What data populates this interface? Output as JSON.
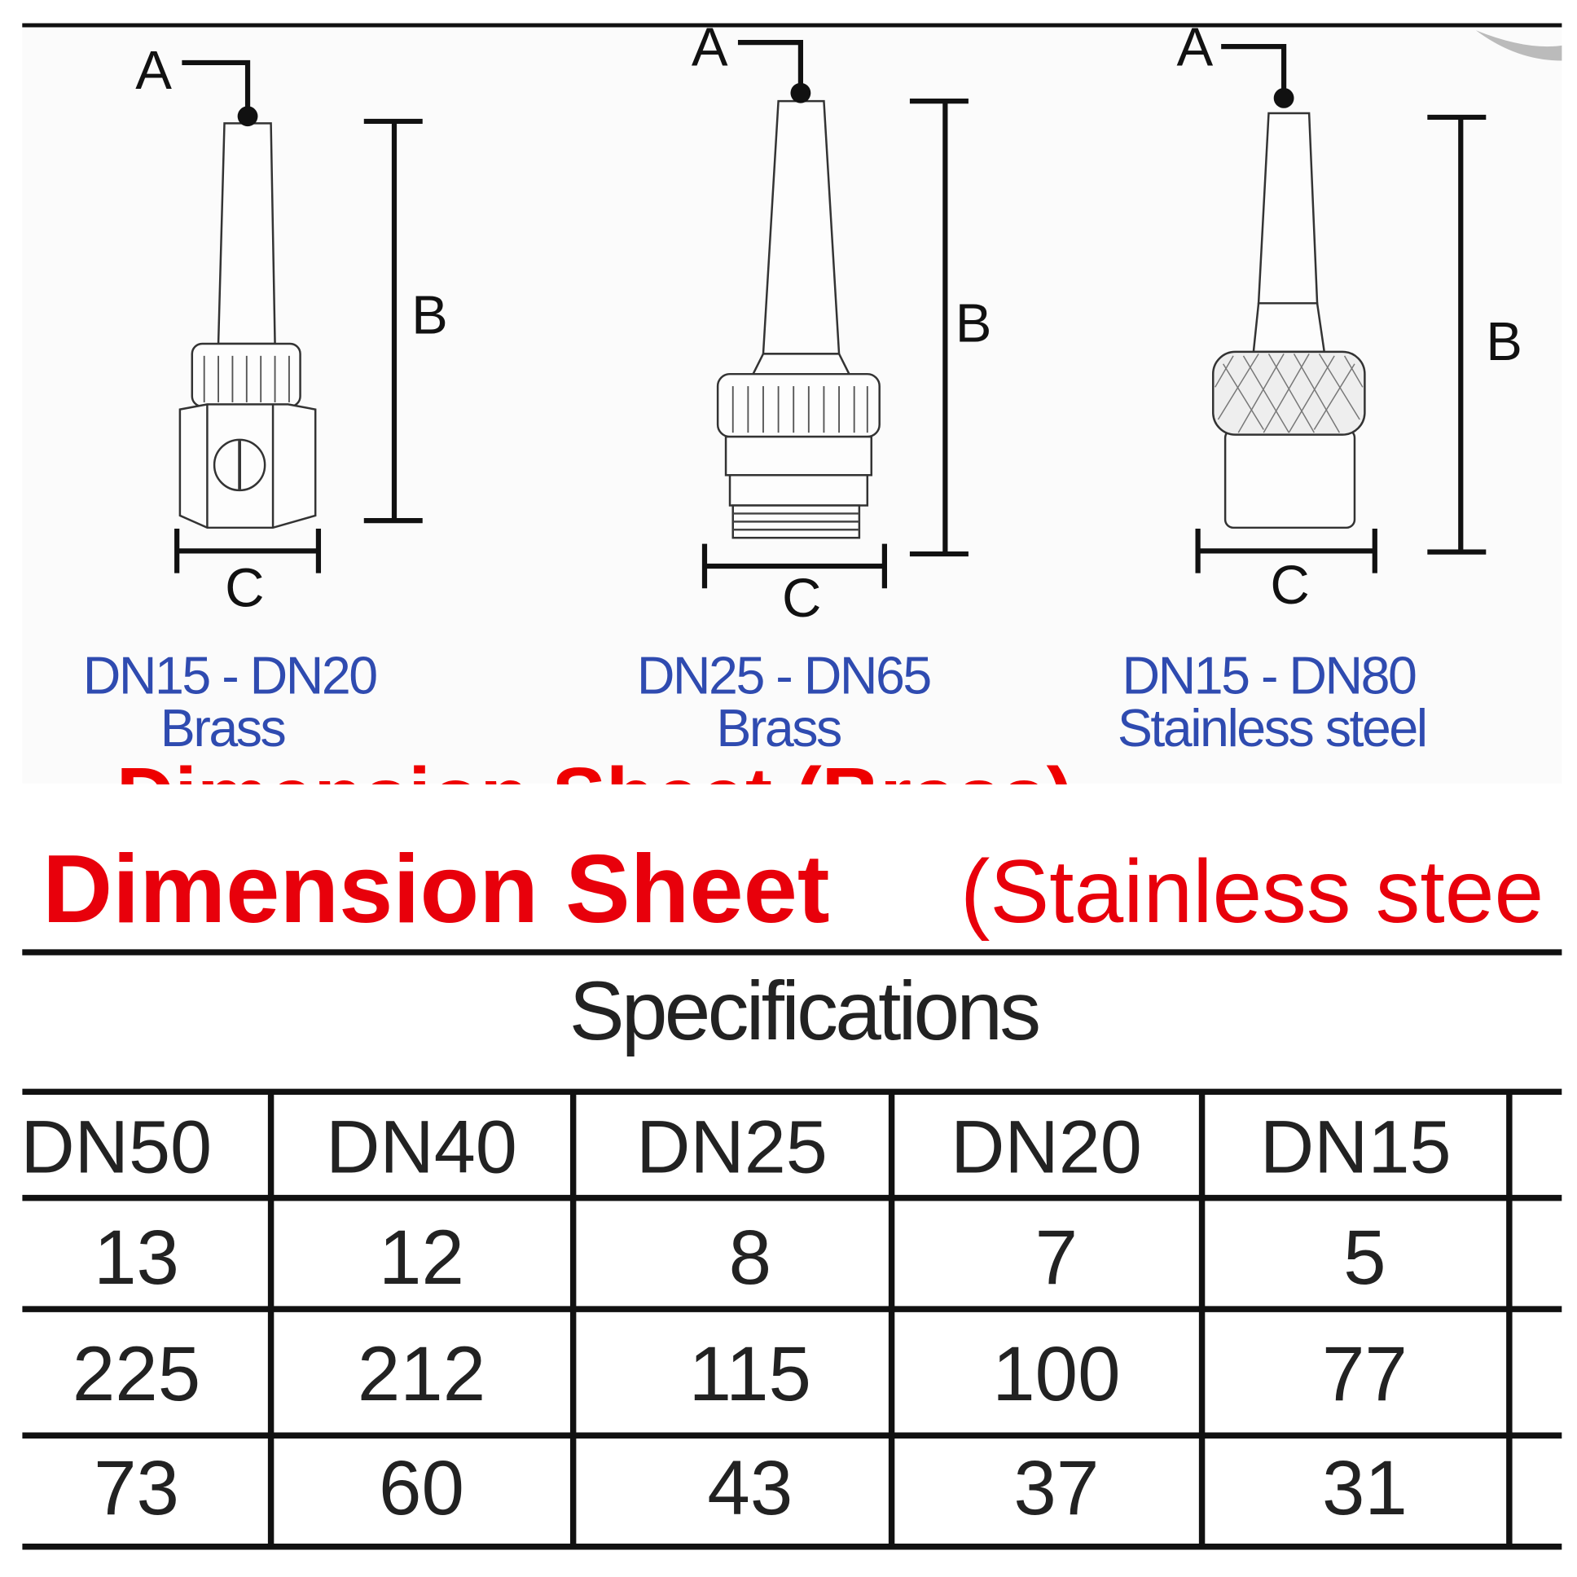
{
  "diagrams": [
    {
      "dimension_labels": [
        "A",
        "B",
        "C"
      ],
      "size_range": "DN15 - DN20",
      "material": "Brass"
    },
    {
      "dimension_labels": [
        "A",
        "B",
        "C"
      ],
      "size_range": "DN25 - DN65",
      "material": "Brass"
    },
    {
      "dimension_labels": [
        "A",
        "B",
        "C"
      ],
      "size_range": "DN15 - DN80",
      "material": "Stainless steel"
    }
  ],
  "cut_off_heading": "Dimension Sheet (Brass)",
  "title": {
    "bold": "Dimension Sheet",
    "rest": "(Stainless stee"
  },
  "table": {
    "caption": "Specifications",
    "header": [
      "DN50",
      "DN40",
      "DN25",
      "DN20",
      "DN15"
    ],
    "rows": [
      [
        13,
        12,
        8,
        7,
        5
      ],
      [
        225,
        212,
        115,
        100,
        77
      ],
      [
        73,
        60,
        43,
        37,
        31
      ]
    ]
  }
}
